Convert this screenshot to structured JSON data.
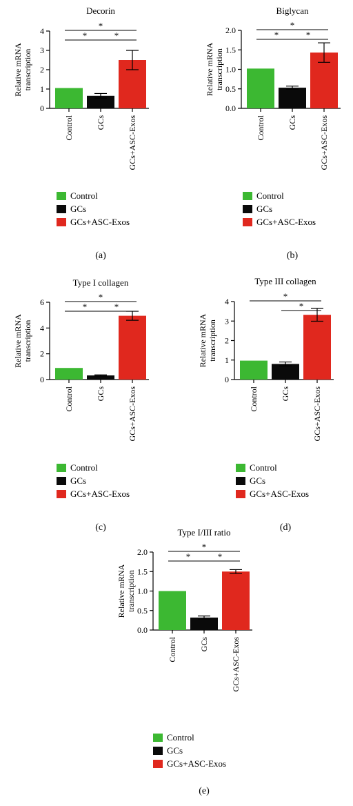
{
  "colors": {
    "control": "#3cb832",
    "gcs": "#0a0a0a",
    "gcs_asc": "#e0281e"
  },
  "legend": [
    {
      "label": "Control",
      "color": "#3cb832"
    },
    {
      "label": "GCs",
      "color": "#0a0a0a"
    },
    {
      "label": "GCs+ASC-Exos",
      "color": "#e0281e"
    }
  ],
  "chart_data": [
    {
      "type": "bar",
      "panel": "(a)",
      "title": "Decorin",
      "ylabel": "Relative mRNA transcription",
      "categories": [
        "Control",
        "GCs",
        "GCs+ASC-Exos"
      ],
      "values": [
        1.05,
        0.65,
        2.5
      ],
      "errors": [
        0,
        0.12,
        0.5
      ],
      "ylim": [
        0,
        4
      ],
      "yticks": [
        "0",
        "1",
        "2",
        "3",
        "4"
      ],
      "significance": [
        "*",
        "*",
        "*"
      ]
    },
    {
      "type": "bar",
      "panel": "(b)",
      "title": "Biglycan",
      "ylabel": "Relative mRNA transcription",
      "categories": [
        "Control",
        "GCs",
        "GCs+ASC-Exos"
      ],
      "values": [
        1.02,
        0.53,
        1.43
      ],
      "errors": [
        0,
        0.04,
        0.25
      ],
      "ylim": [
        0,
        2
      ],
      "yticks": [
        "0.0",
        "0.5",
        "1.0",
        "1.5",
        "2.0"
      ],
      "significance": [
        "*",
        "*",
        "*"
      ]
    },
    {
      "type": "bar",
      "panel": "(c)",
      "title": "Type I collagen",
      "ylabel": "Relative mRNA transcription",
      "categories": [
        "Control",
        "GCs",
        "GCs+ASC-Exos"
      ],
      "values": [
        0.9,
        0.32,
        4.95
      ],
      "errors": [
        0,
        0.04,
        0.35
      ],
      "ylim": [
        0,
        6
      ],
      "yticks": [
        "0",
        "2",
        "4",
        "6"
      ],
      "significance": [
        "*",
        "*",
        "*"
      ]
    },
    {
      "type": "bar",
      "panel": "(d)",
      "title": "Type III collagen",
      "ylabel": "Relative mRNA transcription",
      "categories": [
        "Control",
        "GCs",
        "GCs+ASC-Exos"
      ],
      "values": [
        0.97,
        0.8,
        3.32
      ],
      "errors": [
        0,
        0.1,
        0.33
      ],
      "ylim": [
        0,
        4
      ],
      "yticks": [
        "0",
        "1",
        "2",
        "3",
        "4"
      ],
      "significance": [
        "*",
        "*"
      ]
    },
    {
      "type": "bar",
      "panel": "(e)",
      "title": "Type I/III ratio",
      "ylabel": "Relative mRNA transcription",
      "categories": [
        "Control",
        "GCs",
        "GCs+ASC-Exos"
      ],
      "values": [
        1.0,
        0.32,
        1.5
      ],
      "errors": [
        0,
        0.04,
        0.05
      ],
      "ylim": [
        0,
        2
      ],
      "yticks": [
        "0.0",
        "0.5",
        "1.0",
        "1.5",
        "2.0"
      ],
      "significance": [
        "*",
        "*",
        "*"
      ]
    }
  ]
}
